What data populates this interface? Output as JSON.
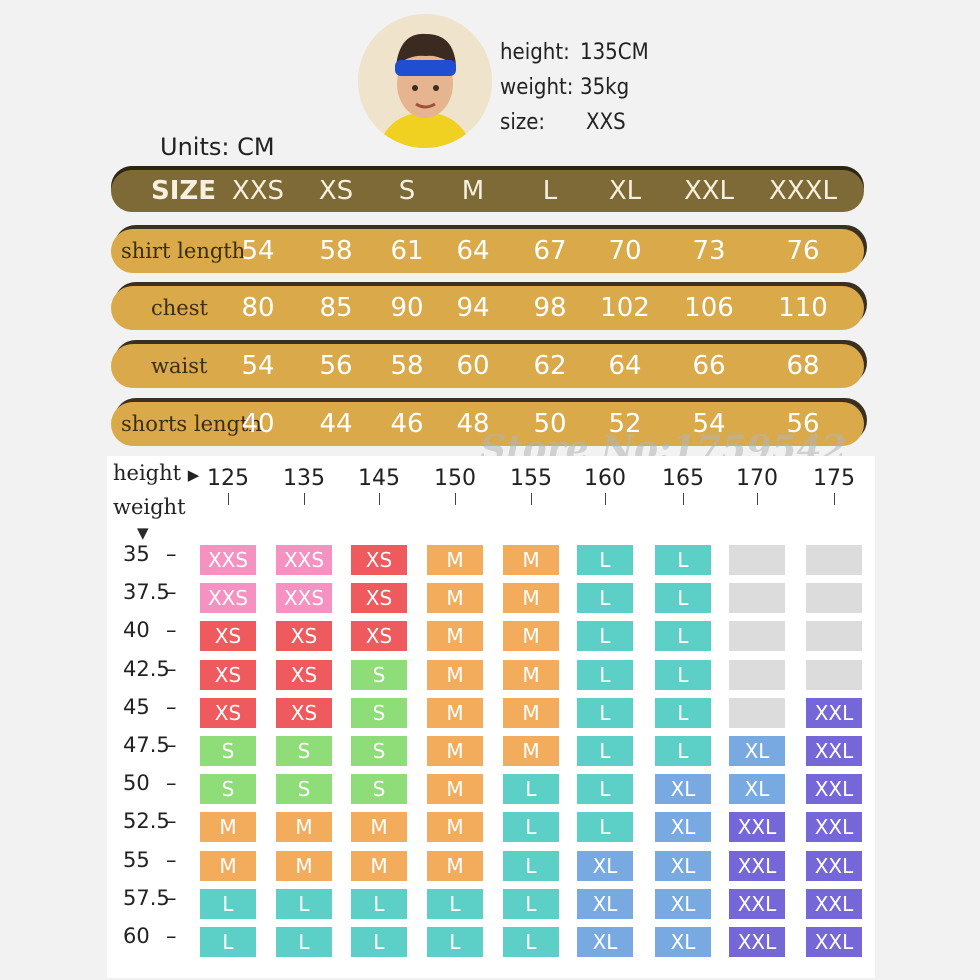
{
  "model": {
    "height_label": "height:",
    "height_value": "135CM",
    "weight_label": "weight:",
    "weight_value": "35kg",
    "size_label": "size:",
    "size_value": "XXS"
  },
  "units_text": "Units:  CM",
  "size_table": {
    "header_label": "SIZE",
    "sizes": [
      "XXS",
      "XS",
      "S",
      "M",
      "L",
      "XL",
      "XXL",
      "XXXL"
    ],
    "rows": [
      {
        "label": "shirt length",
        "values": [
          "54",
          "58",
          "61",
          "64",
          "67",
          "70",
          "73",
          "76"
        ]
      },
      {
        "label": "chest",
        "values": [
          "80",
          "85",
          "90",
          "94",
          "98",
          "102",
          "106",
          "110"
        ]
      },
      {
        "label": "waist",
        "values": [
          "54",
          "56",
          "58",
          "60",
          "62",
          "64",
          "66",
          "68"
        ]
      },
      {
        "label": "shorts length",
        "values": [
          "40",
          "44",
          "46",
          "48",
          "50",
          "52",
          "54",
          "56"
        ]
      }
    ]
  },
  "watermark": "Store No:1759542",
  "chart_data": {
    "type": "table",
    "x_axis_label": "height",
    "y_axis_label": "weight",
    "heights": [
      "125",
      "135",
      "145",
      "150",
      "155",
      "160",
      "165",
      "170",
      "175"
    ],
    "weights": [
      "35",
      "37.5",
      "40",
      "42.5",
      "45",
      "47.5",
      "50",
      "52.5",
      "55",
      "57.5",
      "60"
    ],
    "grid": [
      [
        "XXS",
        "XXS",
        "XS",
        "M",
        "M",
        "L",
        "L",
        "",
        ""
      ],
      [
        "XXS",
        "XXS",
        "XS",
        "M",
        "M",
        "L",
        "L",
        "",
        ""
      ],
      [
        "XS",
        "XS",
        "XS",
        "M",
        "M",
        "L",
        "L",
        "",
        ""
      ],
      [
        "XS",
        "XS",
        "S",
        "M",
        "M",
        "L",
        "L",
        "",
        ""
      ],
      [
        "XS",
        "XS",
        "S",
        "M",
        "M",
        "L",
        "L",
        "",
        "XXL"
      ],
      [
        "S",
        "S",
        "S",
        "M",
        "M",
        "L",
        "L",
        "XL",
        "XXL"
      ],
      [
        "S",
        "S",
        "S",
        "M",
        "L",
        "L",
        "XL",
        "XL",
        "XXL"
      ],
      [
        "M",
        "M",
        "M",
        "M",
        "L",
        "L",
        "XL",
        "XXL",
        "XXL"
      ],
      [
        "M",
        "M",
        "M",
        "M",
        "L",
        "XL",
        "XL",
        "XXL",
        "XXL"
      ],
      [
        "L",
        "L",
        "L",
        "L",
        "L",
        "XL",
        "XL",
        "XXL",
        "XXL"
      ],
      [
        "L",
        "L",
        "L",
        "L",
        "L",
        "XL",
        "XL",
        "XXL",
        "XXL"
      ]
    ],
    "colors": {
      "XXS": "#f592c2",
      "XS": "#ef5a5f",
      "S": "#8fdd78",
      "M": "#f2ac5c",
      "L": "#5ccfc7",
      "XL": "#78a9e0",
      "XXL": "#7667d8",
      "": "#dcdcdc"
    }
  }
}
